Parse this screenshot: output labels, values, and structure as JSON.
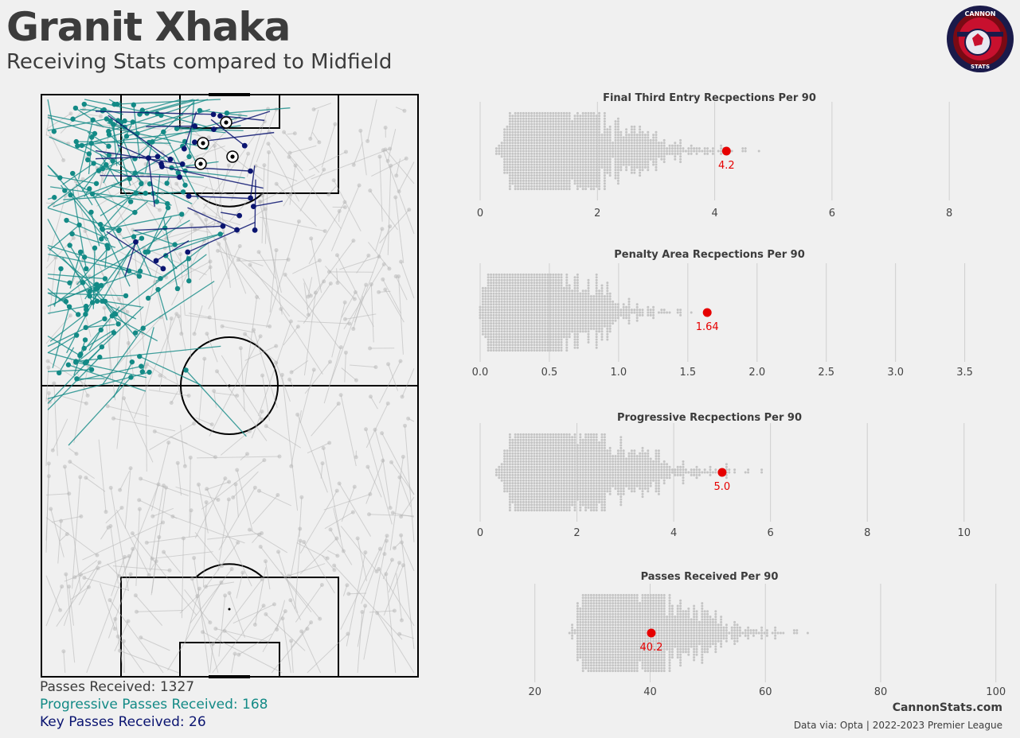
{
  "header": {
    "title": "Granit Xhaka",
    "subtitle": "Receiving Stats compared to Midfield"
  },
  "logo": {
    "top_text": "CANNON",
    "bottom_text": "STATS",
    "colors": [
      "#7a0a14",
      "#1a1a4a",
      "#c8102e"
    ]
  },
  "stats": {
    "passes_received": "Passes Received: 1327",
    "progressive_received": "Progressive Passes Received: 168",
    "key_received": "Key Passes Received: 26"
  },
  "colors": {
    "text": "#3c3c3c",
    "all_passes": "#b4b4b4",
    "progressive": "#138a86",
    "key": "#0a1470",
    "highlight": "#e60000",
    "swarm_dot": "#c4c4c4"
  },
  "chart_data": [
    {
      "type": "scatter",
      "title": "Final Third Entry Recpections Per 90",
      "ticks": [
        0,
        2,
        4,
        6,
        8
      ],
      "xlim": [
        0,
        8.5
      ],
      "player_value": 4.2,
      "player_label": "4.2"
    },
    {
      "type": "scatter",
      "title": "Penalty Area Recpections Per 90",
      "ticks": [
        "0.0",
        "0.5",
        "1.0",
        "1.5",
        "2.0",
        "2.5",
        "3.0",
        "3.5"
      ],
      "xlim": [
        0,
        3.6
      ],
      "player_value": 1.64,
      "player_label": "1.64"
    },
    {
      "type": "scatter",
      "title": "Progressive Recpections Per 90",
      "ticks": [
        0,
        2,
        4,
        6,
        8,
        10
      ],
      "xlim": [
        0,
        10.3
      ],
      "player_value": 5.0,
      "player_label": "5.0"
    },
    {
      "type": "scatter",
      "title": "Passes Received Per 90",
      "ticks": [
        20,
        40,
        60,
        80,
        100
      ],
      "xlim": [
        10.5,
        97
      ],
      "player_value": 40.2,
      "player_label": "40.2"
    }
  ],
  "footer": {
    "brand": "CannonStats.com",
    "source": "Data via: Opta | 2022-2023 Premier League"
  }
}
